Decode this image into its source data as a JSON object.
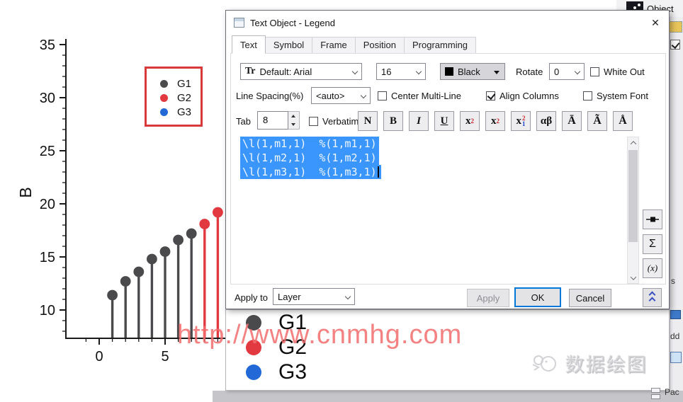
{
  "colors": {
    "g1": "#4a4a4d",
    "g2": "#e2383f",
    "g3": "#2268d6",
    "legend_frame": "#d8393b",
    "selection": "#3a96fd",
    "ok_focus": "#0078d7",
    "watermark": "#f26c6c",
    "axis": "#1a1a1a"
  },
  "background": {
    "object_label": "Object",
    "fragment_s": "s",
    "fragment_dd": "dd",
    "fragment_pac": "Pac"
  },
  "chart": {
    "legend": [
      {
        "label": "G1",
        "color": "#4a4a4d"
      },
      {
        "label": "G2",
        "color": "#e2383f"
      },
      {
        "label": "G3",
        "color": "#2268d6"
      }
    ]
  },
  "chart_data": {
    "type": "stem",
    "title": "",
    "xlabel": "",
    "ylabel": "B",
    "xlim": [
      -1.3,
      9.7
    ],
    "ylim": [
      7.3,
      35.5
    ],
    "xticks": [
      0,
      5
    ],
    "x_minor_step": 1,
    "yticks": [
      10,
      15,
      20,
      25,
      30,
      35
    ],
    "y_minor_step": 1,
    "grid": false,
    "legend_position": "upper-right red frame",
    "series": [
      {
        "name": "G1",
        "color": "#4a4a4d",
        "x": [
          1,
          2,
          3,
          4,
          5,
          6,
          7
        ],
        "y": [
          11.4,
          12.7,
          13.6,
          14.8,
          15.5,
          16.6,
          17.2
        ]
      },
      {
        "name": "G2",
        "color": "#e2383f",
        "x": [
          8,
          9
        ],
        "y": [
          18.1,
          19.2
        ]
      },
      {
        "name": "G3",
        "color": "#2268d6",
        "x": [],
        "y": []
      }
    ]
  },
  "dialog": {
    "title": "Text Object - Legend",
    "close_glyph": "✕",
    "tabs": [
      {
        "label": "Text",
        "active": true
      },
      {
        "label": "Symbol",
        "active": false
      },
      {
        "label": "Frame",
        "active": false
      },
      {
        "label": "Position",
        "active": false
      },
      {
        "label": "Programming",
        "active": false
      }
    ],
    "font_row": {
      "font_icon": "Tr",
      "font": "Default: Arial",
      "size": "16",
      "color": "Black",
      "rotate_label": "Rotate",
      "rotate": "0",
      "white_out": {
        "label": "White Out",
        "checked": false
      }
    },
    "spacing_row": {
      "label": "Line Spacing(%)",
      "value": "<auto>",
      "center_multiline": {
        "label": "Center Multi-Line",
        "checked": false
      },
      "align_columns": {
        "label": "Align Columns",
        "checked": true
      },
      "system_font": {
        "label": "System Font",
        "checked": false
      }
    },
    "tab_row": {
      "label": "Tab",
      "value": "8",
      "verbatim": {
        "label": "Verbatim",
        "checked": false
      }
    },
    "format_buttons": [
      {
        "name": "normal",
        "glyph": "N"
      },
      {
        "name": "bold",
        "glyph": "B"
      },
      {
        "name": "italic",
        "glyph": "I"
      },
      {
        "name": "underline",
        "glyph": "U"
      },
      {
        "name": "superscript",
        "base": "x",
        "sup": "2"
      },
      {
        "name": "subscript",
        "base": "x",
        "sub": "2"
      },
      {
        "name": "supersubscript",
        "base": "x",
        "sup": "2",
        "sub": "1"
      },
      {
        "name": "greek",
        "glyph": "αβ"
      },
      {
        "name": "overline",
        "glyph": "Ā"
      },
      {
        "name": "tilde",
        "glyph": "Ã"
      },
      {
        "name": "overdot",
        "glyph": "Å"
      }
    ],
    "editor": {
      "lines": [
        "\\l(1,m1,1)  %(1,m1,1)",
        "\\l(1,m2,1)  %(1,m2,1)",
        "\\l(1,m3,1)  %(1,m3,1)"
      ]
    },
    "side_buttons": {
      "sigma": "Σ",
      "fx": "(x)"
    },
    "footer": {
      "apply_to_label": "Apply to",
      "target": "Layer",
      "apply": "Apply",
      "ok": "OK",
      "cancel": "Cancel"
    }
  },
  "preview": {
    "entries": [
      {
        "label": "G1",
        "color": "#4a4a4d"
      },
      {
        "label": "G2",
        "color": "#e2383f"
      },
      {
        "label": "G3",
        "color": "#2268d6"
      }
    ]
  },
  "watermarks": {
    "url": "http://www.cnmhg.com",
    "brand": "数据绘图"
  }
}
